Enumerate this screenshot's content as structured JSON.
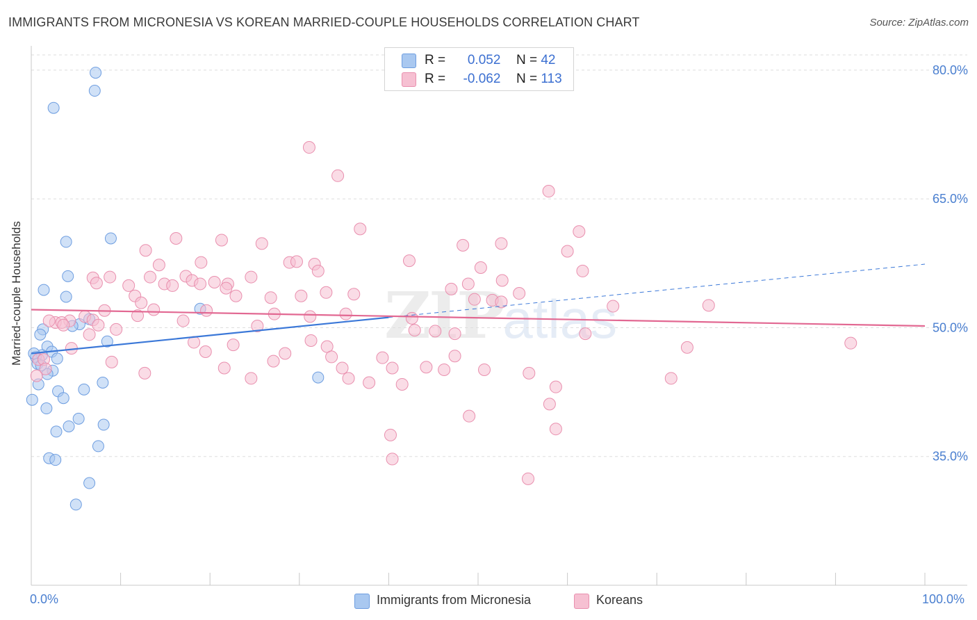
{
  "title": "IMMIGRANTS FROM MICRONESIA VS KOREAN MARRIED-COUPLE HOUSEHOLDS CORRELATION CHART",
  "source": "Source: ZipAtlas.com",
  "watermark": {
    "zip": "ZIP",
    "atlas": "atlas"
  },
  "legend": {
    "rows": [
      {
        "r_label": "R =",
        "r_value": "0.052",
        "n_label": "N =",
        "n_value": "42",
        "color": "#a9c8f0",
        "border": "#6d9de0"
      },
      {
        "r_label": "R =",
        "r_value": "-0.062",
        "n_label": "N =",
        "n_value": "113",
        "color": "#f6c0d2",
        "border": "#e98fae"
      }
    ]
  },
  "bottom_legend": {
    "items": [
      {
        "label": "Immigrants from Micronesia",
        "color": "#a9c8f0",
        "border": "#6d9de0"
      },
      {
        "label": "Koreans",
        "color": "#f6c0d2",
        "border": "#e98fae"
      }
    ]
  },
  "chart_data": {
    "type": "scatter",
    "title": "IMMIGRANTS FROM MICRONESIA VS KOREAN MARRIED-COUPLE HOUSEHOLDS CORRELATION CHART",
    "xlabel": "",
    "ylabel": "Married-couple Households",
    "xlim": [
      0,
      100
    ],
    "ylim": [
      20,
      82.5
    ],
    "x_tick_labels": [
      "0.0%",
      "100.0%"
    ],
    "y_ticks": [
      35,
      50,
      65,
      80
    ],
    "y_tick_labels": [
      "35.0%",
      "50.0%",
      "65.0%",
      "80.0%"
    ],
    "grid": true,
    "legend_position": "top-center",
    "series": [
      {
        "name": "Immigrants from Micronesia",
        "color": "#6d9de0",
        "fill": "#a9c8f0",
        "r": 0.052,
        "n": 42,
        "trend": {
          "x": [
            0,
            40
          ],
          "y": [
            47.0,
            51.2
          ],
          "dashed_extension": {
            "x": [
              40,
              100
            ],
            "y": [
              51.2,
              57.4
            ]
          }
        },
        "points": [
          [
            7.2,
            79.7
          ],
          [
            7.1,
            77.6
          ],
          [
            2.5,
            75.6
          ],
          [
            8.9,
            60.4
          ],
          [
            3.9,
            60.0
          ],
          [
            4.1,
            56.0
          ],
          [
            1.4,
            54.4
          ],
          [
            3.9,
            53.6
          ],
          [
            18.9,
            52.2
          ],
          [
            6.5,
            51.0
          ],
          [
            5.4,
            50.4
          ],
          [
            1.3,
            49.8
          ],
          [
            1.0,
            49.2
          ],
          [
            8.5,
            48.4
          ],
          [
            1.8,
            47.8
          ],
          [
            2.3,
            47.2
          ],
          [
            1.2,
            46.8
          ],
          [
            0.5,
            46.6
          ],
          [
            0.7,
            45.8
          ],
          [
            2.4,
            45.0
          ],
          [
            1.8,
            44.6
          ],
          [
            32.1,
            44.2
          ],
          [
            0.8,
            43.4
          ],
          [
            8.0,
            43.6
          ],
          [
            5.9,
            42.8
          ],
          [
            3.0,
            42.6
          ],
          [
            3.6,
            41.8
          ],
          [
            0.1,
            41.6
          ],
          [
            1.7,
            40.6
          ],
          [
            5.3,
            39.4
          ],
          [
            8.1,
            38.7
          ],
          [
            4.2,
            38.5
          ],
          [
            2.8,
            37.9
          ],
          [
            7.5,
            36.2
          ],
          [
            2.0,
            34.8
          ],
          [
            2.7,
            34.6
          ],
          [
            6.5,
            31.9
          ],
          [
            5.0,
            29.4
          ],
          [
            0.3,
            47.0
          ],
          [
            4.6,
            50.2
          ],
          [
            2.9,
            46.4
          ],
          [
            1.1,
            45.6
          ]
        ]
      },
      {
        "name": "Koreans",
        "color": "#e98fae",
        "fill": "#f6c0d2",
        "r": -0.062,
        "n": 113,
        "trend": {
          "x": [
            0,
            100
          ],
          "y": [
            52.1,
            50.2
          ]
        },
        "points": [
          [
            31.1,
            71.0
          ],
          [
            34.3,
            67.7
          ],
          [
            57.9,
            65.9
          ],
          [
            36.8,
            61.5
          ],
          [
            16.2,
            60.4
          ],
          [
            21.3,
            60.2
          ],
          [
            25.8,
            59.8
          ],
          [
            52.6,
            59.8
          ],
          [
            48.3,
            59.6
          ],
          [
            61.3,
            61.2
          ],
          [
            12.8,
            59.0
          ],
          [
            60.0,
            58.9
          ],
          [
            14.3,
            57.3
          ],
          [
            19.0,
            57.6
          ],
          [
            28.9,
            57.6
          ],
          [
            29.7,
            57.7
          ],
          [
            31.7,
            57.4
          ],
          [
            42.3,
            57.8
          ],
          [
            50.3,
            57.0
          ],
          [
            61.7,
            56.6
          ],
          [
            6.9,
            55.8
          ],
          [
            8.8,
            55.9
          ],
          [
            13.3,
            55.9
          ],
          [
            24.6,
            55.9
          ],
          [
            17.3,
            56.0
          ],
          [
            7.3,
            55.2
          ],
          [
            14.9,
            55.1
          ],
          [
            18.0,
            55.5
          ],
          [
            18.9,
            55.1
          ],
          [
            20.5,
            55.3
          ],
          [
            22.0,
            55.1
          ],
          [
            32.1,
            56.6
          ],
          [
            52.7,
            55.5
          ],
          [
            10.9,
            54.9
          ],
          [
            15.8,
            54.9
          ],
          [
            11.6,
            53.7
          ],
          [
            12.3,
            52.9
          ],
          [
            21.8,
            54.6
          ],
          [
            22.9,
            53.7
          ],
          [
            26.8,
            53.5
          ],
          [
            33.0,
            54.1
          ],
          [
            36.1,
            53.9
          ],
          [
            47.0,
            54.5
          ],
          [
            48.9,
            55.1
          ],
          [
            30.2,
            53.7
          ],
          [
            49.6,
            53.3
          ],
          [
            51.6,
            53.2
          ],
          [
            52.6,
            53.0
          ],
          [
            54.6,
            54.0
          ],
          [
            65.1,
            52.5
          ],
          [
            75.8,
            52.6
          ],
          [
            8.2,
            52.0
          ],
          [
            13.7,
            52.1
          ],
          [
            19.6,
            52.0
          ],
          [
            27.2,
            51.6
          ],
          [
            31.2,
            51.3
          ],
          [
            35.2,
            51.6
          ],
          [
            42.6,
            51.1
          ],
          [
            11.9,
            51.4
          ],
          [
            4.3,
            50.8
          ],
          [
            6.0,
            51.3
          ],
          [
            6.9,
            50.9
          ],
          [
            17.0,
            50.8
          ],
          [
            25.3,
            50.2
          ],
          [
            2.7,
            50.6
          ],
          [
            3.4,
            50.6
          ],
          [
            3.6,
            50.3
          ],
          [
            7.5,
            50.3
          ],
          [
            9.5,
            49.8
          ],
          [
            45.2,
            49.6
          ],
          [
            47.4,
            49.3
          ],
          [
            62.0,
            49.3
          ],
          [
            42.9,
            49.7
          ],
          [
            6.5,
            49.2
          ],
          [
            18.2,
            48.3
          ],
          [
            22.6,
            48.0
          ],
          [
            31.3,
            48.5
          ],
          [
            33.1,
            47.8
          ],
          [
            73.4,
            47.7
          ],
          [
            91.7,
            48.2
          ],
          [
            4.5,
            47.6
          ],
          [
            19.5,
            47.2
          ],
          [
            28.4,
            47.0
          ],
          [
            33.6,
            46.6
          ],
          [
            39.3,
            46.5
          ],
          [
            47.4,
            46.7
          ],
          [
            0.8,
            46.3
          ],
          [
            1.4,
            46.3
          ],
          [
            9.0,
            46.0
          ],
          [
            27.1,
            46.1
          ],
          [
            21.6,
            45.3
          ],
          [
            34.8,
            45.3
          ],
          [
            40.4,
            45.3
          ],
          [
            44.2,
            45.4
          ],
          [
            46.2,
            45.1
          ],
          [
            50.7,
            45.1
          ],
          [
            55.7,
            44.7
          ],
          [
            12.7,
            44.7
          ],
          [
            24.6,
            44.1
          ],
          [
            35.5,
            44.1
          ],
          [
            37.8,
            43.6
          ],
          [
            41.5,
            43.4
          ],
          [
            71.6,
            44.1
          ],
          [
            58.7,
            43.1
          ],
          [
            58.0,
            41.1
          ],
          [
            49.0,
            39.7
          ],
          [
            58.7,
            38.2
          ],
          [
            40.2,
            37.5
          ],
          [
            40.4,
            34.7
          ],
          [
            55.6,
            32.4
          ],
          [
            0.6,
            44.4
          ],
          [
            1.6,
            45.2
          ],
          [
            2.0,
            50.8
          ]
        ]
      }
    ]
  }
}
